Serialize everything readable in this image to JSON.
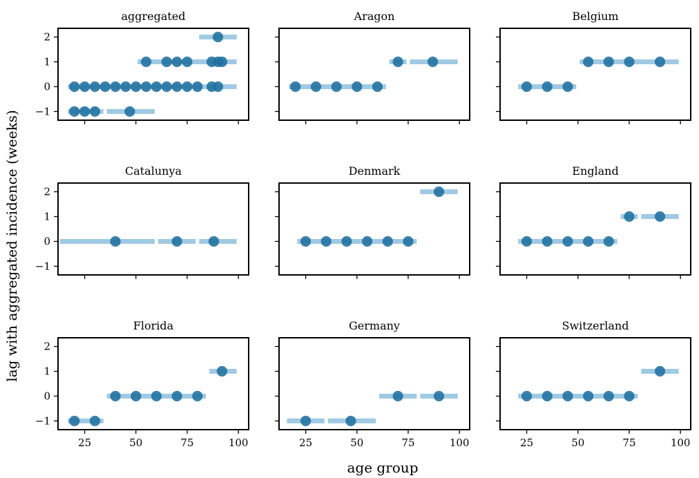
{
  "chart_data": {
    "type": "scatter",
    "xlabel": "age group",
    "ylabel": "lag with aggregated incidence (weeks)",
    "xlim": [
      12,
      105
    ],
    "ylim": [
      -1.35,
      2.35
    ],
    "xticks": [
      25,
      50,
      75,
      100
    ],
    "yticks": [
      -1,
      0,
      1,
      2
    ],
    "colors": {
      "point": "#1f6f9f",
      "range": "#8fc0de"
    },
    "panels": [
      {
        "title": "aggregated",
        "bars": [
          {
            "x0": 16,
            "x1": 35,
            "y": -1
          },
          {
            "x0": 35,
            "x1": 60,
            "y": -1
          },
          {
            "x0": 16,
            "x1": 100,
            "y": 0
          },
          {
            "x0": 50,
            "x1": 100,
            "y": 1
          },
          {
            "x0": 80,
            "x1": 100,
            "y": 2
          }
        ],
        "points": [
          {
            "x": 20,
            "y": -1
          },
          {
            "x": 25,
            "y": -1
          },
          {
            "x": 30,
            "y": -1
          },
          {
            "x": 47,
            "y": -1
          },
          {
            "x": 20,
            "y": 0
          },
          {
            "x": 25,
            "y": 0
          },
          {
            "x": 30,
            "y": 0
          },
          {
            "x": 35,
            "y": 0
          },
          {
            "x": 40,
            "y": 0
          },
          {
            "x": 45,
            "y": 0
          },
          {
            "x": 50,
            "y": 0
          },
          {
            "x": 55,
            "y": 0
          },
          {
            "x": 60,
            "y": 0
          },
          {
            "x": 65,
            "y": 0
          },
          {
            "x": 70,
            "y": 0
          },
          {
            "x": 75,
            "y": 0
          },
          {
            "x": 80,
            "y": 0
          },
          {
            "x": 87,
            "y": 0
          },
          {
            "x": 90,
            "y": 0
          },
          {
            "x": 55,
            "y": 1
          },
          {
            "x": 65,
            "y": 1
          },
          {
            "x": 70,
            "y": 1
          },
          {
            "x": 75,
            "y": 1
          },
          {
            "x": 87,
            "y": 1
          },
          {
            "x": 90,
            "y": 1
          },
          {
            "x": 92,
            "y": 1
          },
          {
            "x": 90,
            "y": 2
          }
        ]
      },
      {
        "title": "Aragon",
        "bars": [
          {
            "x0": 16,
            "x1": 65,
            "y": 0
          },
          {
            "x0": 65,
            "x1": 75,
            "y": 1
          },
          {
            "x0": 75,
            "x1": 100,
            "y": 1
          }
        ],
        "points": [
          {
            "x": 20,
            "y": 0
          },
          {
            "x": 30,
            "y": 0
          },
          {
            "x": 40,
            "y": 0
          },
          {
            "x": 50,
            "y": 0
          },
          {
            "x": 60,
            "y": 0
          },
          {
            "x": 70,
            "y": 1
          },
          {
            "x": 87,
            "y": 1
          }
        ]
      },
      {
        "title": "Belgium",
        "bars": [
          {
            "x0": 20,
            "x1": 50,
            "y": 0
          },
          {
            "x0": 50,
            "x1": 100,
            "y": 1
          }
        ],
        "points": [
          {
            "x": 25,
            "y": 0
          },
          {
            "x": 35,
            "y": 0
          },
          {
            "x": 45,
            "y": 0
          },
          {
            "x": 55,
            "y": 1
          },
          {
            "x": 65,
            "y": 1
          },
          {
            "x": 75,
            "y": 1
          },
          {
            "x": 90,
            "y": 1
          }
        ]
      },
      {
        "title": "Catalunya",
        "bars": [
          {
            "x0": 12,
            "x1": 60,
            "y": 0
          },
          {
            "x0": 60,
            "x1": 80,
            "y": 0
          },
          {
            "x0": 80,
            "x1": 100,
            "y": 0
          }
        ],
        "points": [
          {
            "x": 40,
            "y": 0
          },
          {
            "x": 70,
            "y": 0
          },
          {
            "x": 88,
            "y": 0
          }
        ]
      },
      {
        "title": "Denmark",
        "bars": [
          {
            "x0": 20,
            "x1": 80,
            "y": 0
          },
          {
            "x0": 80,
            "x1": 100,
            "y": 2
          }
        ],
        "points": [
          {
            "x": 25,
            "y": 0
          },
          {
            "x": 35,
            "y": 0
          },
          {
            "x": 45,
            "y": 0
          },
          {
            "x": 55,
            "y": 0
          },
          {
            "x": 65,
            "y": 0
          },
          {
            "x": 75,
            "y": 0
          },
          {
            "x": 90,
            "y": 2
          }
        ]
      },
      {
        "title": "England",
        "bars": [
          {
            "x0": 20,
            "x1": 70,
            "y": 0
          },
          {
            "x0": 70,
            "x1": 80,
            "y": 1
          },
          {
            "x0": 80,
            "x1": 100,
            "y": 1
          }
        ],
        "points": [
          {
            "x": 25,
            "y": 0
          },
          {
            "x": 35,
            "y": 0
          },
          {
            "x": 45,
            "y": 0
          },
          {
            "x": 55,
            "y": 0
          },
          {
            "x": 65,
            "y": 0
          },
          {
            "x": 75,
            "y": 1
          },
          {
            "x": 90,
            "y": 1
          }
        ]
      },
      {
        "title": "Florida",
        "bars": [
          {
            "x0": 16,
            "x1": 35,
            "y": -1
          },
          {
            "x0": 35,
            "x1": 85,
            "y": 0
          },
          {
            "x0": 85,
            "x1": 100,
            "y": 1
          }
        ],
        "points": [
          {
            "x": 20,
            "y": -1
          },
          {
            "x": 30,
            "y": -1
          },
          {
            "x": 40,
            "y": 0
          },
          {
            "x": 50,
            "y": 0
          },
          {
            "x": 60,
            "y": 0
          },
          {
            "x": 70,
            "y": 0
          },
          {
            "x": 80,
            "y": 0
          },
          {
            "x": 92,
            "y": 1
          }
        ]
      },
      {
        "title": "Germany",
        "bars": [
          {
            "x0": 15,
            "x1": 35,
            "y": -1
          },
          {
            "x0": 35,
            "x1": 60,
            "y": -1
          },
          {
            "x0": 60,
            "x1": 80,
            "y": 0
          },
          {
            "x0": 80,
            "x1": 100,
            "y": 0
          }
        ],
        "points": [
          {
            "x": 25,
            "y": -1
          },
          {
            "x": 47,
            "y": -1
          },
          {
            "x": 70,
            "y": 0
          },
          {
            "x": 90,
            "y": 0
          }
        ]
      },
      {
        "title": "Switzerland",
        "bars": [
          {
            "x0": 20,
            "x1": 80,
            "y": 0
          },
          {
            "x0": 80,
            "x1": 100,
            "y": 1
          }
        ],
        "points": [
          {
            "x": 25,
            "y": 0
          },
          {
            "x": 35,
            "y": 0
          },
          {
            "x": 45,
            "y": 0
          },
          {
            "x": 55,
            "y": 0
          },
          {
            "x": 65,
            "y": 0
          },
          {
            "x": 75,
            "y": 0
          },
          {
            "x": 90,
            "y": 1
          }
        ]
      }
    ]
  }
}
